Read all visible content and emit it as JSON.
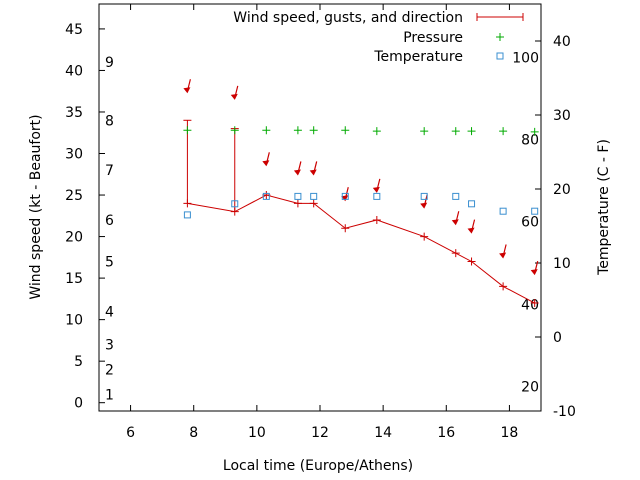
{
  "chart_data": {
    "type": "line",
    "xlabel": "Local time (Europe/Athens)",
    "ylabel_left": "Wind speed (kt - Beaufort)",
    "ylabel_right": "Temperature (C - F)",
    "xlim": [
      5,
      19
    ],
    "x_ticks": [
      6,
      8,
      10,
      12,
      14,
      16,
      18
    ],
    "ylim_left": [
      -1,
      48
    ],
    "y_ticks_left": [
      0,
      5,
      10,
      15,
      20,
      25,
      30,
      35,
      40,
      45
    ],
    "ylim_right": [
      -10,
      45
    ],
    "y_ticks_right": [
      -10,
      0,
      10,
      20,
      30,
      40
    ],
    "beaufort_scale": [
      {
        "label": "1",
        "y": 1
      },
      {
        "label": "2",
        "y": 4
      },
      {
        "label": "3",
        "y": 7
      },
      {
        "label": "4",
        "y": 11
      },
      {
        "label": "5",
        "y": 17
      },
      {
        "label": "6",
        "y": 22
      },
      {
        "label": "7",
        "y": 28
      },
      {
        "label": "8",
        "y": 34
      },
      {
        "label": "9",
        "y": 41
      }
    ],
    "fahrenheit_scale": [
      {
        "label": "20",
        "c": -6.7
      },
      {
        "label": "40",
        "c": 4.4
      },
      {
        "label": "60",
        "c": 15.6
      },
      {
        "label": "80",
        "c": 26.7
      },
      {
        "label": "100",
        "c": 37.8
      }
    ],
    "legend": [
      "Wind speed, gusts, and direction",
      "Pressure",
      "Temperature"
    ],
    "legend_position": "top-right",
    "colors": {
      "wind": "#cc0000",
      "pressure": "#00aa00",
      "temperature": "#3a8fd0"
    },
    "series": [
      {
        "name": "Wind speed, gusts, and direction",
        "x": [
          7.8,
          9.3,
          10.3,
          11.3,
          11.8,
          12.8,
          13.8,
          15.3,
          16.3,
          16.8,
          17.8,
          18.8
        ],
        "values": [
          24,
          23,
          25,
          24,
          24,
          21,
          22,
          20,
          18,
          17,
          14,
          12
        ],
        "gusts": [
          34,
          33,
          null,
          null,
          null,
          null,
          null,
          null,
          null,
          null,
          null,
          null
        ],
        "direction_marker_y": [
          37.5,
          36.7,
          28.7,
          27.6,
          27.6,
          24.5,
          25.5,
          23.6,
          21.6,
          20.6,
          17.6,
          15.6
        ]
      },
      {
        "name": "Pressure",
        "x": [
          7.8,
          9.3,
          10.3,
          11.3,
          11.8,
          12.8,
          13.8,
          15.3,
          16.3,
          16.8,
          17.8,
          18.8
        ],
        "values": [
          32.8,
          32.8,
          32.8,
          32.8,
          32.8,
          32.8,
          32.7,
          32.7,
          32.7,
          32.7,
          32.7,
          32.6
        ]
      },
      {
        "name": "Temperature",
        "x": [
          7.8,
          9.3,
          10.3,
          11.3,
          11.8,
          12.8,
          13.8,
          15.3,
          16.3,
          16.8,
          17.8,
          18.8
        ],
        "values": [
          16.5,
          18,
          19,
          19,
          19,
          19,
          19,
          19,
          19,
          18,
          17,
          17
        ]
      }
    ]
  }
}
